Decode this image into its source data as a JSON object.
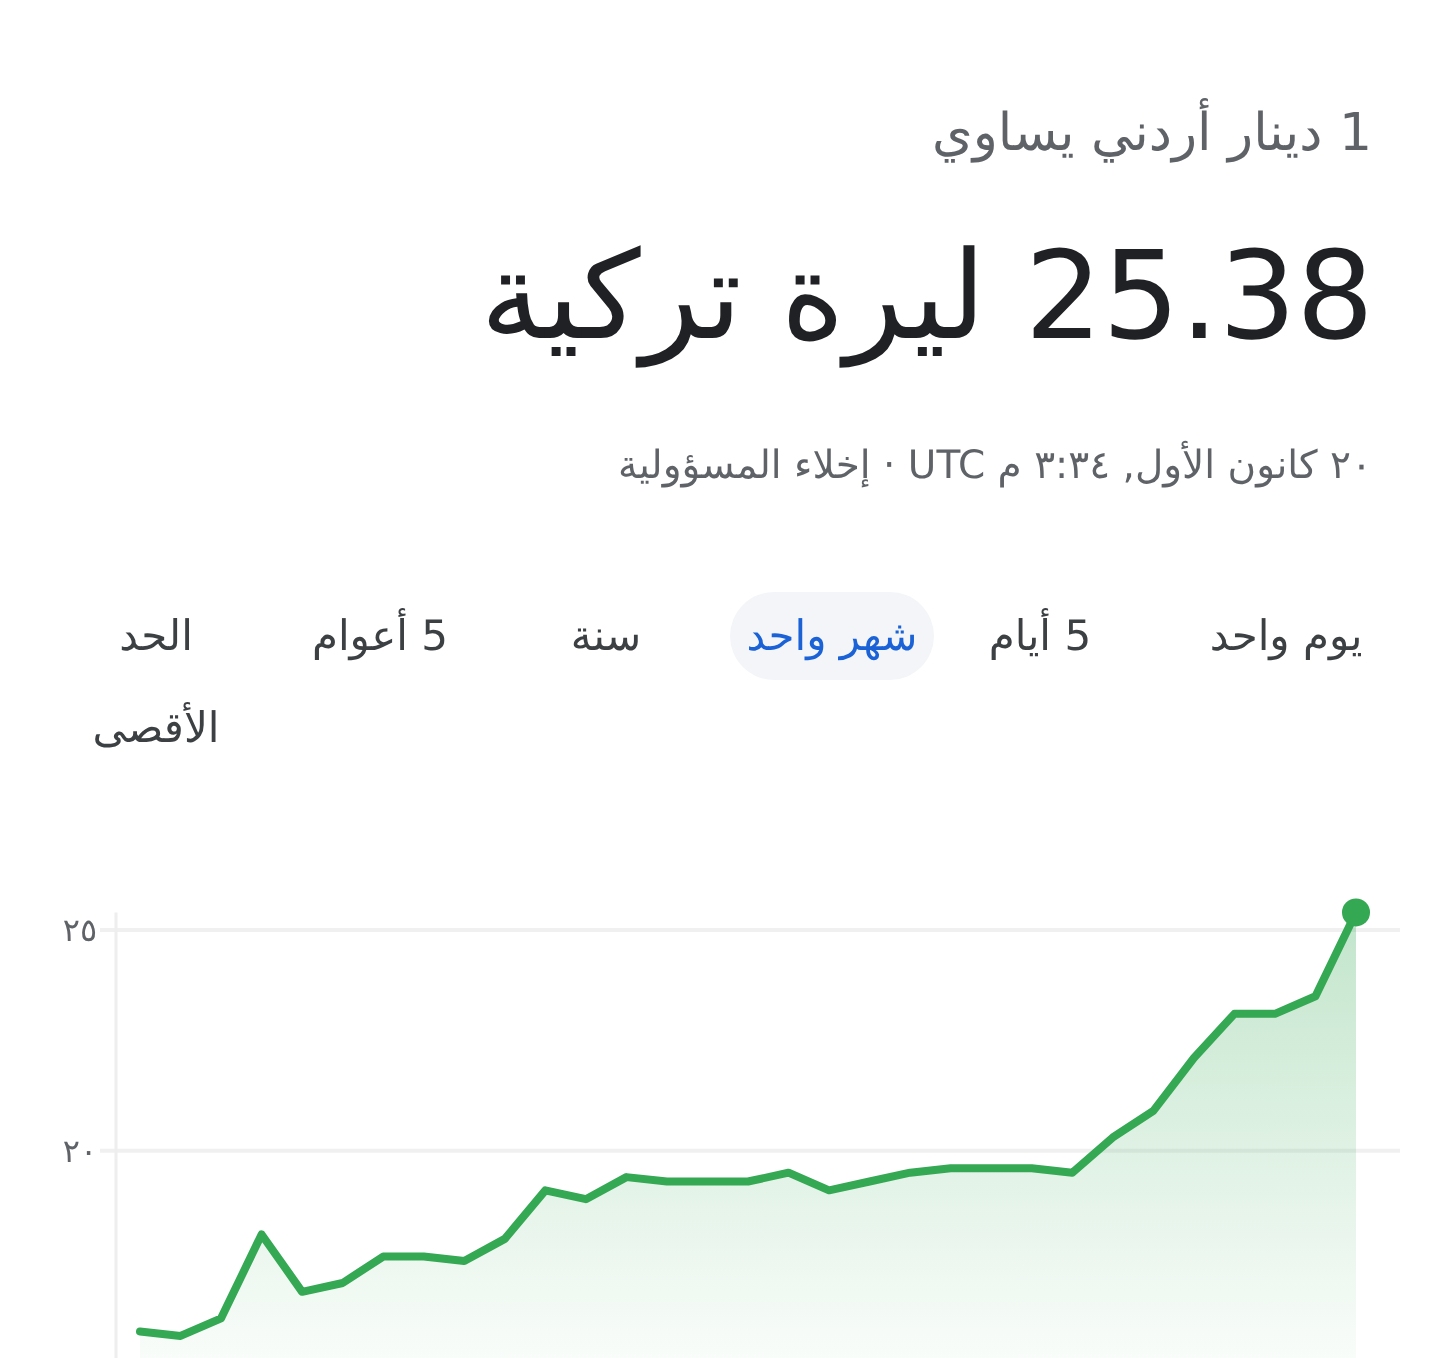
{
  "chart_data": {
    "type": "area",
    "title": "25.38 ليرة تركية",
    "subtitle": "1 دينار أردني يساوي",
    "annotations": [
      "٢٠ كانون الأول, ٣:٣٤ م UTC · إخلاء المسؤولية",
      "يوم واحد",
      "5 أيام",
      "شهر واحد",
      "سنة",
      "5 أعوام",
      "الحد الأقصى"
    ],
    "categories": [
      null,
      null,
      null,
      null,
      null,
      null,
      null,
      null,
      null,
      null,
      null,
      null,
      null,
      null,
      null,
      null,
      null,
      null,
      null,
      null,
      null,
      null,
      null,
      null,
      null,
      null,
      null,
      null,
      null,
      null,
      null
    ],
    "series": [
      {
        "color": "#34a853",
        "values": [
          15.9,
          15.8,
          16.2,
          18.1,
          16.8,
          17.0,
          17.6,
          17.6,
          17.5,
          18.0,
          19.1,
          18.9,
          19.4,
          19.3,
          19.3,
          19.3,
          19.5,
          19.1,
          19.3,
          19.5,
          19.6,
          19.6,
          19.6,
          19.5,
          20.3,
          20.9,
          22.1,
          23.1,
          23.1,
          23.5,
          25.4
        ]
      },
      {
        "type": "scatter",
        "color": "#34a853",
        "values": [
          null,
          null,
          null,
          null,
          null,
          null,
          null,
          null,
          null,
          null,
          null,
          null,
          null,
          null,
          null,
          null,
          null,
          null,
          null,
          null,
          null,
          null,
          null,
          null,
          null,
          null,
          null,
          null,
          null,
          null,
          25.4
        ]
      }
    ],
    "ylim": [
      15.3,
      25.4
    ],
    "yticks": [
      {
        "value": 20,
        "label": "٢٠"
      },
      {
        "value": 25,
        "label": "٢٥"
      }
    ],
    "grid": "y",
    "tick_labels": "y"
  }
}
